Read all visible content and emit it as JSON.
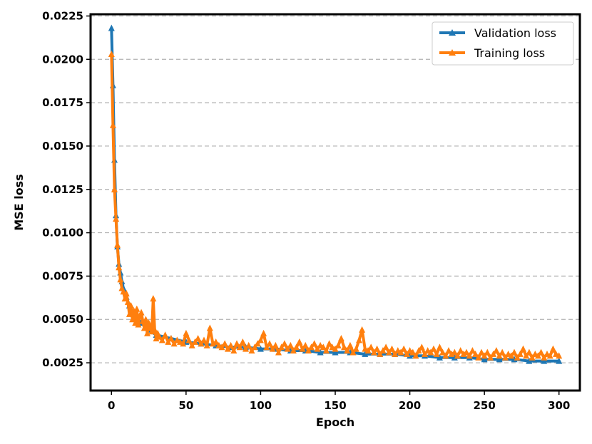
{
  "chart_data": {
    "type": "line",
    "title": "",
    "xlabel": "Epoch",
    "ylabel": "MSE loss",
    "xlim": [
      -14,
      314
    ],
    "ylim": [
      0.0009,
      0.0226
    ],
    "xticks": [
      0,
      50,
      100,
      150,
      200,
      250,
      300
    ],
    "yticks": [
      0.0025,
      0.005,
      0.0075,
      0.01,
      0.0125,
      0.015,
      0.0175,
      0.02,
      0.0225
    ],
    "xtick_labels": [
      "0",
      "50",
      "100",
      "150",
      "200",
      "250",
      "300"
    ],
    "ytick_labels": [
      "0.0025",
      "0.0050",
      "0.0075",
      "0.0100",
      "0.0125",
      "0.0150",
      "0.0175",
      "0.0200",
      "0.0225"
    ],
    "grid": {
      "axis": "y",
      "style": "dashed"
    },
    "legend": {
      "position": "top-right"
    },
    "colors": {
      "validation": "#1f77b4",
      "training": "#ff7f0e"
    },
    "series": [
      {
        "name": "Validation loss",
        "color": "#1f77b4",
        "marker": "triangle-up",
        "x": [
          0,
          1,
          2,
          3,
          4,
          5,
          6,
          7,
          8,
          10,
          12,
          15,
          20,
          25,
          30,
          40,
          50,
          60,
          70,
          80,
          90,
          100,
          110,
          120,
          130,
          140,
          150,
          160,
          170,
          180,
          190,
          200,
          210,
          220,
          230,
          240,
          250,
          260,
          270,
          280,
          290,
          300
        ],
        "y": [
          0.0218,
          0.0185,
          0.0142,
          0.011,
          0.0092,
          0.0082,
          0.0077,
          0.0072,
          0.0068,
          0.0063,
          0.0058,
          0.0053,
          0.0048,
          0.0044,
          0.0041,
          0.0039,
          0.0037,
          0.0036,
          0.0035,
          0.0034,
          0.0034,
          0.0033,
          0.0033,
          0.0032,
          0.0032,
          0.0031,
          0.0031,
          0.0031,
          0.003,
          0.003,
          0.003,
          0.0029,
          0.0029,
          0.0028,
          0.0028,
          0.0028,
          0.0027,
          0.0027,
          0.0027,
          0.0026,
          0.0026,
          0.0026
        ]
      },
      {
        "name": "Training loss",
        "color": "#ff7f0e",
        "marker": "triangle-up",
        "x": [
          0,
          1,
          2,
          3,
          4,
          5,
          6,
          7,
          8,
          9,
          10,
          11,
          12,
          13,
          14,
          15,
          16,
          17,
          18,
          19,
          20,
          21,
          22,
          23,
          24,
          25,
          26,
          27,
          28,
          29,
          30,
          31,
          32,
          34,
          36,
          38,
          40,
          42,
          44,
          46,
          48,
          50,
          52,
          54,
          56,
          58,
          60,
          62,
          64,
          66,
          68,
          70,
          72,
          74,
          76,
          78,
          80,
          82,
          84,
          86,
          88,
          90,
          92,
          94,
          96,
          98,
          100,
          102,
          104,
          106,
          108,
          110,
          112,
          114,
          116,
          118,
          120,
          122,
          124,
          126,
          128,
          130,
          132,
          134,
          136,
          138,
          140,
          142,
          144,
          146,
          148,
          150,
          152,
          154,
          156,
          158,
          160,
          162,
          164,
          166,
          168,
          170,
          172,
          174,
          176,
          178,
          180,
          182,
          184,
          186,
          188,
          190,
          192,
          194,
          196,
          198,
          200,
          202,
          204,
          206,
          208,
          210,
          212,
          214,
          216,
          218,
          220,
          222,
          224,
          226,
          228,
          230,
          232,
          234,
          236,
          238,
          240,
          242,
          244,
          246,
          248,
          250,
          252,
          254,
          256,
          258,
          260,
          262,
          264,
          266,
          268,
          270,
          272,
          274,
          276,
          278,
          280,
          282,
          284,
          286,
          288,
          290,
          292,
          294,
          296,
          298,
          300
        ],
        "y": [
          0.0203,
          0.0162,
          0.0125,
          0.0108,
          0.0093,
          0.008,
          0.0073,
          0.0068,
          0.0066,
          0.0062,
          0.0065,
          0.006,
          0.0053,
          0.0058,
          0.005,
          0.0055,
          0.0048,
          0.0056,
          0.0047,
          0.0052,
          0.0054,
          0.0049,
          0.0045,
          0.005,
          0.0042,
          0.0048,
          0.0045,
          0.0043,
          0.0062,
          0.0044,
          0.0039,
          0.0042,
          0.004,
          0.0038,
          0.0041,
          0.0037,
          0.0039,
          0.0036,
          0.0038,
          0.0037,
          0.0036,
          0.0042,
          0.0038,
          0.0035,
          0.0037,
          0.0039,
          0.0036,
          0.0038,
          0.0035,
          0.0045,
          0.0036,
          0.0037,
          0.0035,
          0.0034,
          0.0036,
          0.0033,
          0.0035,
          0.0032,
          0.0036,
          0.0034,
          0.0037,
          0.0033,
          0.0035,
          0.0032,
          0.0034,
          0.0036,
          0.0038,
          0.0042,
          0.0034,
          0.0036,
          0.0033,
          0.0035,
          0.0031,
          0.0034,
          0.0036,
          0.0033,
          0.0035,
          0.0032,
          0.0034,
          0.0037,
          0.0033,
          0.0035,
          0.0032,
          0.0034,
          0.0036,
          0.0033,
          0.0035,
          0.0034,
          0.0032,
          0.0036,
          0.0034,
          0.0033,
          0.0035,
          0.0039,
          0.0034,
          0.0032,
          0.0035,
          0.0031,
          0.0033,
          0.0038,
          0.0044,
          0.0033,
          0.0032,
          0.0034,
          0.0031,
          0.0033,
          0.003,
          0.0032,
          0.0034,
          0.0031,
          0.0033,
          0.003,
          0.0032,
          0.0031,
          0.0033,
          0.003,
          0.0032,
          0.0031,
          0.0029,
          0.0032,
          0.0034,
          0.003,
          0.0032,
          0.0031,
          0.0033,
          0.003,
          0.0034,
          0.0031,
          0.0029,
          0.0032,
          0.003,
          0.0031,
          0.0029,
          0.0032,
          0.003,
          0.0031,
          0.0029,
          0.0032,
          0.003,
          0.0028,
          0.0031,
          0.0029,
          0.0031,
          0.0028,
          0.003,
          0.0032,
          0.0029,
          0.0031,
          0.0028,
          0.003,
          0.0029,
          0.0031,
          0.0028,
          0.003,
          0.0033,
          0.0029,
          0.0031,
          0.0028,
          0.003,
          0.0029,
          0.0031,
          0.0028,
          0.003,
          0.0029,
          0.0033,
          0.003,
          0.0029
        ]
      }
    ]
  }
}
